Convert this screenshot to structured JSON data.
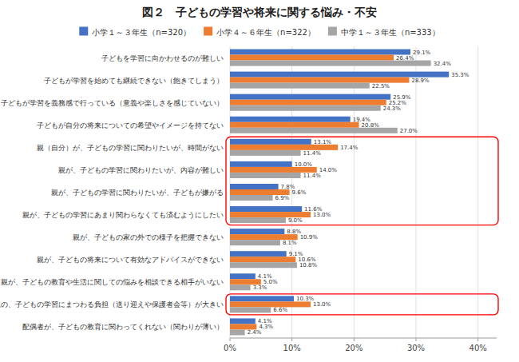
{
  "chart_data": {
    "type": "bar",
    "orientation": "horizontal",
    "title": "図２　子どもの学習や将来に関する悩み・不安",
    "categories": [
      "子どもを学習に向かわせるのが難しい",
      "子どもが学習を始めても継続できない（飽きてしまう）",
      "子どもが学習を義務感で行っている（意義や楽しさを感じていない）",
      "子どもが自分の将来についての希望やイメージを持てない",
      "親（自分）が、子どもの学習に関わりたいが、時間がない",
      "親が、子どもの学習に関わりたいが、内容が難しい",
      "親が、子どもの学習に関わりたいが、子どもが嫌がる",
      "親が、子どもの学習にあまり関わらなくても済むようにしたい",
      "親が、子どもの家の外での様子を把握できない",
      "親が、子どもの将来について有効なアドバイスができない",
      "親が、子どもの教育や生活に関しての悩みを相談できる相手がいない",
      "親の、子どもの学習にまつわる負担（送り迎えや保護者会等）が大きい",
      "配偶者が、子どもの教育に関わってくれない（関わりが薄い）"
    ],
    "series": [
      {
        "name": "小学１～３年生（n=320）",
        "color": "#4472c4",
        "values": [
          29.1,
          35.3,
          25.9,
          19.4,
          13.1,
          10.0,
          7.8,
          11.6,
          8.8,
          9.1,
          4.1,
          10.3,
          4.1
        ],
        "value_labels": [
          "29.1%",
          "35.3%",
          "25.9%",
          "19.4%",
          "13.1%",
          "10.0%",
          "7.8%",
          "11.6%",
          "8.8%",
          "9.1%",
          "4.1%",
          "10.3%",
          "4.1%"
        ]
      },
      {
        "name": "小学４～６年生（n=322）",
        "color": "#ed7d31",
        "values": [
          26.4,
          28.9,
          25.2,
          20.8,
          17.4,
          14.0,
          9.6,
          13.0,
          10.9,
          10.6,
          5.0,
          13.0,
          4.3
        ],
        "value_labels": [
          "26.4%",
          "28.9%",
          "25.2%",
          "20.8%",
          "17.4%",
          "14.0%",
          "9.6%",
          "13.0%",
          "10.9%",
          "10.6%",
          "5.0%",
          "13.0%",
          "4.3%"
        ]
      },
      {
        "name": "中学１～３年生（n=333）",
        "color": "#a5a5a5",
        "values": [
          32.4,
          22.5,
          24.3,
          27.0,
          11.4,
          11.4,
          6.9,
          9.0,
          8.1,
          10.8,
          3.3,
          6.6,
          2.4
        ],
        "value_labels": [
          "32.4%",
          "22.5%",
          "24.3%",
          "27.0%",
          "11.4%",
          "11.4%",
          "6.9%",
          "9.0%",
          "8.1%",
          "10.8%",
          "3.3%",
          "6.6%",
          "2.4%"
        ]
      }
    ],
    "xlim": [
      0,
      43
    ],
    "xticks": [
      {
        "value": 0,
        "label": "0%"
      },
      {
        "value": 10,
        "label": "10%"
      },
      {
        "value": 20,
        "label": "20%"
      },
      {
        "value": 30,
        "label": "30%"
      },
      {
        "value": 40,
        "label": "40%"
      }
    ],
    "grid": true,
    "data_labels": true,
    "highlight_rows": [
      [
        4,
        5,
        6,
        7
      ],
      [
        11
      ]
    ]
  }
}
